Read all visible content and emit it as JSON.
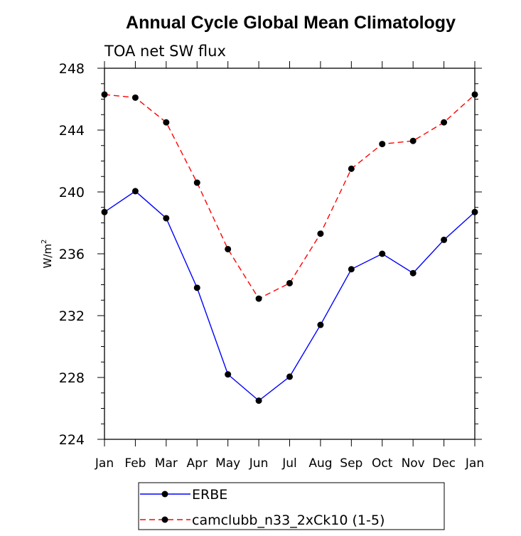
{
  "chart_data": {
    "type": "line",
    "title": "Annual Cycle Global Mean Climatology",
    "subtitle": "TOA net SW flux",
    "ylabel": "W/m",
    "ylabel_sup": "2",
    "categories": [
      "Jan",
      "Feb",
      "Mar",
      "Apr",
      "May",
      "Jun",
      "Jul",
      "Aug",
      "Sep",
      "Oct",
      "Nov",
      "Dec",
      "Jan"
    ],
    "ylim": [
      224,
      248
    ],
    "yticks": [
      224,
      228,
      232,
      236,
      240,
      244,
      248
    ],
    "legend_position": "bottom",
    "series": [
      {
        "name": "ERBE",
        "color": "#0000ff",
        "dashed": false,
        "values": [
          238.7,
          240.05,
          238.3,
          233.8,
          228.2,
          226.5,
          228.05,
          231.4,
          235.0,
          236.0,
          234.75,
          236.9,
          238.7
        ]
      },
      {
        "name": "camclubb_n33_2xCk10 (1-5)",
        "color": "#ff0000",
        "dashed": true,
        "values": [
          246.3,
          246.1,
          244.5,
          240.6,
          236.3,
          233.1,
          234.1,
          237.3,
          241.5,
          243.1,
          243.3,
          244.5,
          246.3
        ]
      }
    ]
  }
}
